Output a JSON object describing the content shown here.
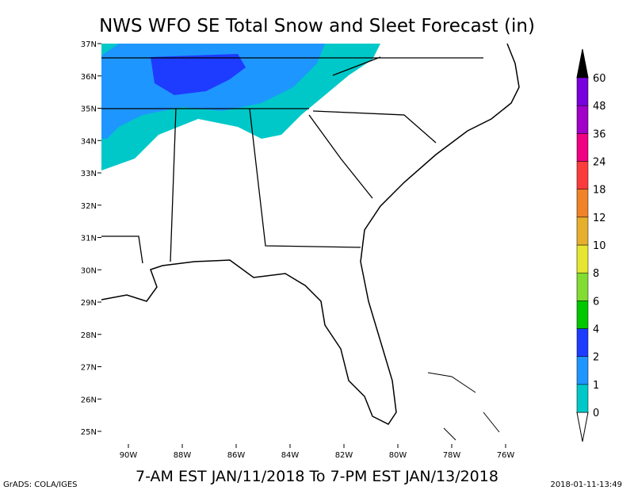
{
  "title": "NWS WFO SE Total Snow and Sleet Forecast (in)",
  "subtitle": "7-AM EST JAN/11/2018 To 7-PM EST JAN/13/2018",
  "credit": "GrADS: COLA/IGES",
  "timestamp": "2018-01-11-13:49",
  "lat_labels": [
    "37N",
    "36N",
    "35N",
    "34N",
    "33N",
    "32N",
    "31N",
    "30N",
    "29N",
    "28N",
    "27N",
    "26N",
    "25N"
  ],
  "lon_labels": [
    "90W",
    "88W",
    "86W",
    "84W",
    "82W",
    "80W",
    "78W",
    "76W"
  ],
  "legend": {
    "labels": [
      "0",
      "1",
      "2",
      "4",
      "6",
      "8",
      "10",
      "12",
      "18",
      "24",
      "36",
      "48",
      "60"
    ],
    "colors": [
      "#00c8c8",
      "#1e96ff",
      "#1e3cff",
      "#00c800",
      "#82dc32",
      "#e6e632",
      "#e6af2d",
      "#f08228",
      "#fa3c3c",
      "#f00082",
      "#a000c8",
      "#7800dc"
    ]
  }
}
